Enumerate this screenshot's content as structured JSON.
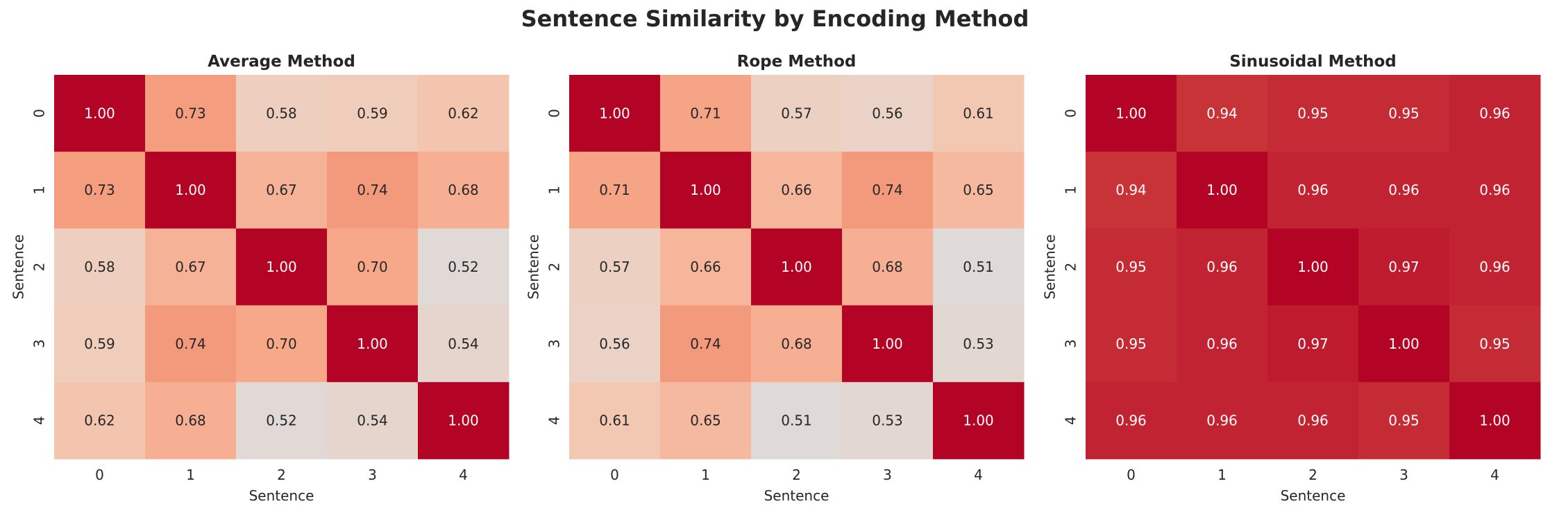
{
  "chart_data": {
    "title": "Sentence Similarity by Encoding Method",
    "colormap": "coolwarm",
    "vmin": 0,
    "vmax": 1,
    "colorbar": false,
    "panels": [
      {
        "type": "heatmap",
        "title": "Average Method",
        "xlabel": "Sentence",
        "ylabel": "Sentence",
        "x_ticks": [
          "0",
          "1",
          "2",
          "3",
          "4"
        ],
        "y_ticks": [
          "0",
          "1",
          "2",
          "3",
          "4"
        ],
        "values": [
          [
            1.0,
            0.73,
            0.58,
            0.59,
            0.62
          ],
          [
            0.73,
            1.0,
            0.67,
            0.74,
            0.68
          ],
          [
            0.58,
            0.67,
            1.0,
            0.7,
            0.52
          ],
          [
            0.59,
            0.74,
            0.7,
            1.0,
            0.54
          ],
          [
            0.62,
            0.68,
            0.52,
            0.54,
            1.0
          ]
        ]
      },
      {
        "type": "heatmap",
        "title": "Rope Method",
        "xlabel": "Sentence",
        "ylabel": "Sentence",
        "x_ticks": [
          "0",
          "1",
          "2",
          "3",
          "4"
        ],
        "y_ticks": [
          "0",
          "1",
          "2",
          "3",
          "4"
        ],
        "values": [
          [
            1.0,
            0.71,
            0.57,
            0.56,
            0.61
          ],
          [
            0.71,
            1.0,
            0.66,
            0.74,
            0.65
          ],
          [
            0.57,
            0.66,
            1.0,
            0.68,
            0.51
          ],
          [
            0.56,
            0.74,
            0.68,
            1.0,
            0.53
          ],
          [
            0.61,
            0.65,
            0.51,
            0.53,
            1.0
          ]
        ]
      },
      {
        "type": "heatmap",
        "title": "Sinusoidal Method",
        "xlabel": "Sentence",
        "ylabel": "Sentence",
        "x_ticks": [
          "0",
          "1",
          "2",
          "3",
          "4"
        ],
        "y_ticks": [
          "0",
          "1",
          "2",
          "3",
          "4"
        ],
        "values": [
          [
            1.0,
            0.94,
            0.95,
            0.95,
            0.96
          ],
          [
            0.94,
            1.0,
            0.96,
            0.96,
            0.96
          ],
          [
            0.95,
            0.96,
            1.0,
            0.97,
            0.96
          ],
          [
            0.95,
            0.96,
            0.97,
            1.0,
            0.95
          ],
          [
            0.96,
            0.96,
            0.96,
            0.95,
            1.0
          ]
        ]
      }
    ]
  }
}
